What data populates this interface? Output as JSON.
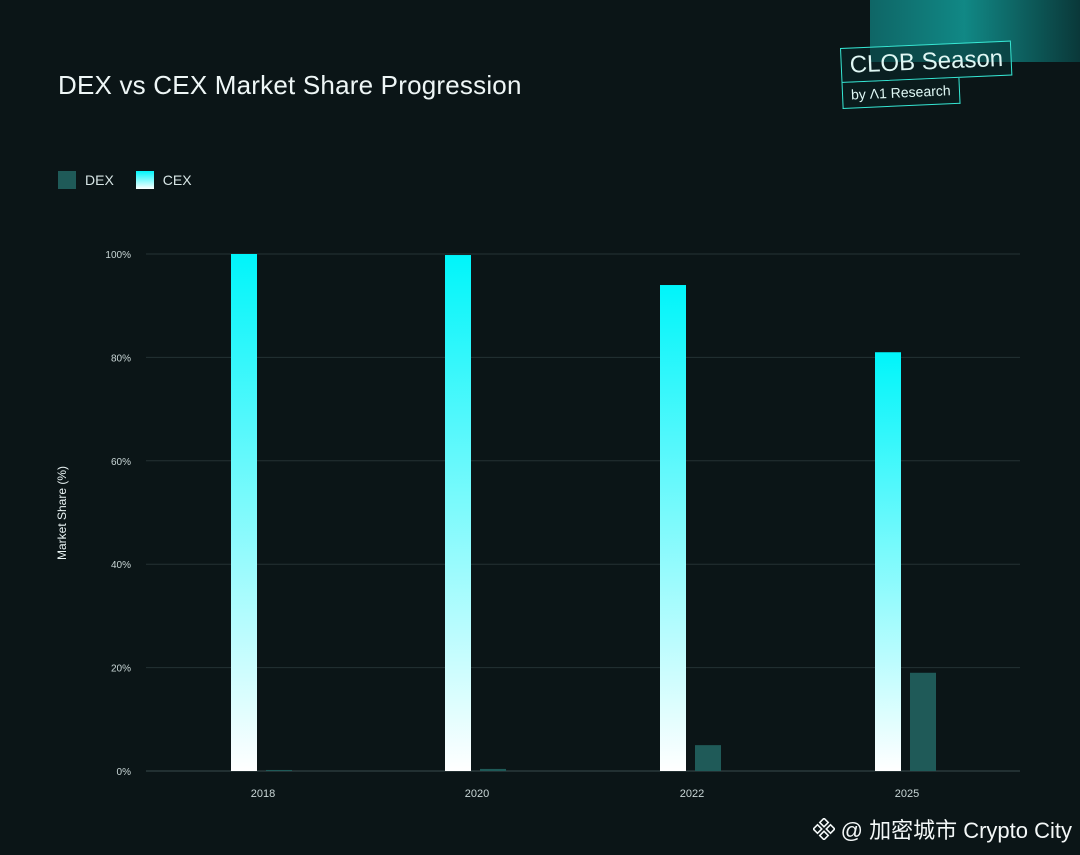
{
  "header": {
    "title": "DEX vs CEX Market Share Progression"
  },
  "brand": {
    "main": "CLOB Season",
    "sub": "by Λ1 Research"
  },
  "legend": [
    {
      "label": "DEX",
      "color": "#1f5a58"
    },
    {
      "label": "CEX",
      "color": "#00f5fa"
    }
  ],
  "watermark": {
    "text": "@ 加密城市 Crypto City"
  },
  "chart_data": {
    "type": "bar",
    "title": "DEX vs CEX Market Share Progression",
    "xlabel": "",
    "ylabel": "Market Share (%)",
    "categories": [
      "2018",
      "2020",
      "2022",
      "2025"
    ],
    "series": [
      {
        "name": "CEX",
        "values": [
          100,
          99.8,
          94,
          81
        ],
        "color_top": "#00f5fa",
        "color_bottom": "#ffffff"
      },
      {
        "name": "DEX",
        "values": [
          0.2,
          0.4,
          5,
          19
        ],
        "color": "#1f5a58"
      }
    ],
    "ylim": [
      0,
      100
    ],
    "yticks": [
      "0%",
      "20%",
      "40%",
      "60%",
      "80%",
      "100%"
    ],
    "grid": true,
    "legend_position": "top-left"
  }
}
